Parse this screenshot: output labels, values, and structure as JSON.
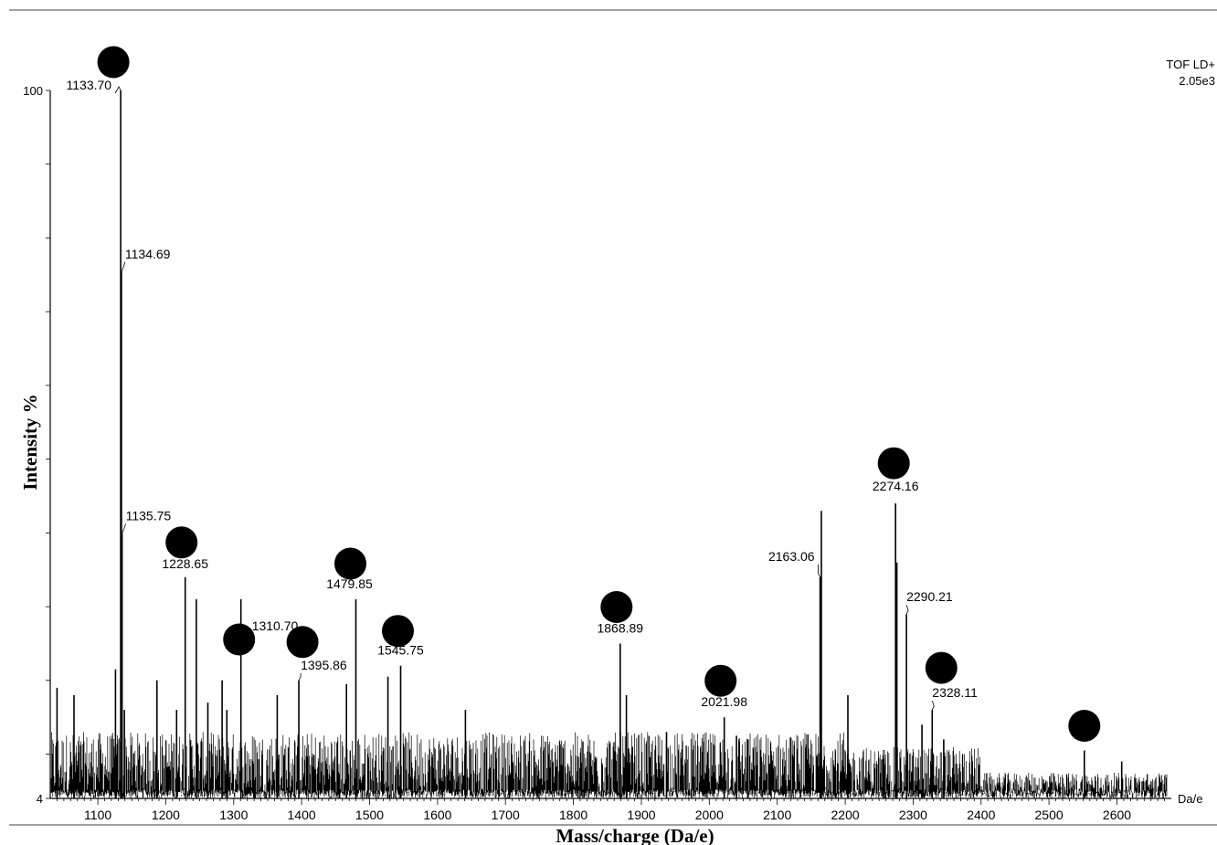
{
  "chart_data": {
    "type": "line",
    "instrument": "TOF LD+",
    "max_intensity": "2.05e3",
    "xlabel": "Mass/charge (Da/e)",
    "ylabel": "Intensity %",
    "x_unit": "Da/e",
    "xlim": [
      1030,
      2680
    ],
    "ylim": [
      4,
      100
    ],
    "y_tick_labels": [
      "100",
      "4"
    ],
    "x_ticks": [
      1100,
      1200,
      1300,
      1400,
      1500,
      1600,
      1700,
      1800,
      1900,
      2000,
      2100,
      2200,
      2300,
      2400,
      2500,
      2600
    ],
    "x_tick_labels": [
      "1100",
      "1200",
      "1300",
      "1400",
      "1500",
      "1600",
      "1700",
      "1800",
      "1900",
      "2000",
      "2100",
      "2200",
      "2300",
      "2400",
      "2500",
      "2600"
    ],
    "labeled_peaks": [
      {
        "mz": 1133.7,
        "label": "1133.70",
        "intensity": 100,
        "marked": true
      },
      {
        "mz": 1134.69,
        "label": "1134.69",
        "intensity": 75.5,
        "marked": false
      },
      {
        "mz": 1135.75,
        "label": "1135.75",
        "intensity": 40,
        "marked": false
      },
      {
        "mz": 1228.65,
        "label": "1228.65",
        "intensity": 34,
        "marked": true
      },
      {
        "mz": 1310.7,
        "label": "1310.70",
        "intensity": 31,
        "marked": true
      },
      {
        "mz": 1395.86,
        "label": "1395.86",
        "intensity": 20,
        "marked": true
      },
      {
        "mz": 1479.85,
        "label": "1479.85",
        "intensity": 31,
        "marked": true
      },
      {
        "mz": 1545.75,
        "label": "1545.75",
        "intensity": 22,
        "marked": true
      },
      {
        "mz": 1868.89,
        "label": "1868.89",
        "intensity": 25,
        "marked": true
      },
      {
        "mz": 2021.98,
        "label": "2021.98",
        "intensity": 15,
        "marked": true
      },
      {
        "mz": 2163.06,
        "label": "2163.06",
        "intensity": 34,
        "marked": false
      },
      {
        "mz": 2274.16,
        "label": "2274.16",
        "intensity": 44,
        "marked": true
      },
      {
        "mz": 2290.21,
        "label": "2290.21",
        "intensity": 29,
        "marked": false
      },
      {
        "mz": 2328.11,
        "label": "2328.11",
        "intensity": 16,
        "marked": true
      }
    ],
    "unlabeled_marked_peaks": [
      {
        "mz": 2552,
        "intensity": 10.5
      }
    ],
    "minor_peaks": [
      {
        "mz": 1040,
        "intensity": 19
      },
      {
        "mz": 1065,
        "intensity": 18
      },
      {
        "mz": 1126,
        "intensity": 21.5
      },
      {
        "mz": 1139,
        "intensity": 16
      },
      {
        "mz": 1187,
        "intensity": 20
      },
      {
        "mz": 1216,
        "intensity": 16
      },
      {
        "mz": 1245,
        "intensity": 31
      },
      {
        "mz": 1262,
        "intensity": 17
      },
      {
        "mz": 1283,
        "intensity": 20
      },
      {
        "mz": 1290,
        "intensity": 16
      },
      {
        "mz": 1364,
        "intensity": 18
      },
      {
        "mz": 1466,
        "intensity": 19.5
      },
      {
        "mz": 1527,
        "intensity": 20.5
      },
      {
        "mz": 1641,
        "intensity": 16
      },
      {
        "mz": 1878,
        "intensity": 18
      },
      {
        "mz": 1937,
        "intensity": 13
      },
      {
        "mz": 2040,
        "intensity": 12.5
      },
      {
        "mz": 2057,
        "intensity": 12
      },
      {
        "mz": 2165,
        "intensity": 43
      },
      {
        "mz": 2204,
        "intensity": 18
      },
      {
        "mz": 2276,
        "intensity": 36
      },
      {
        "mz": 2313,
        "intensity": 14
      },
      {
        "mz": 2345,
        "intensity": 12
      },
      {
        "mz": 2607,
        "intensity": 9
      }
    ],
    "colors": {
      "trace": "#000000",
      "marker": "#000000",
      "background": "#ffffff"
    }
  }
}
